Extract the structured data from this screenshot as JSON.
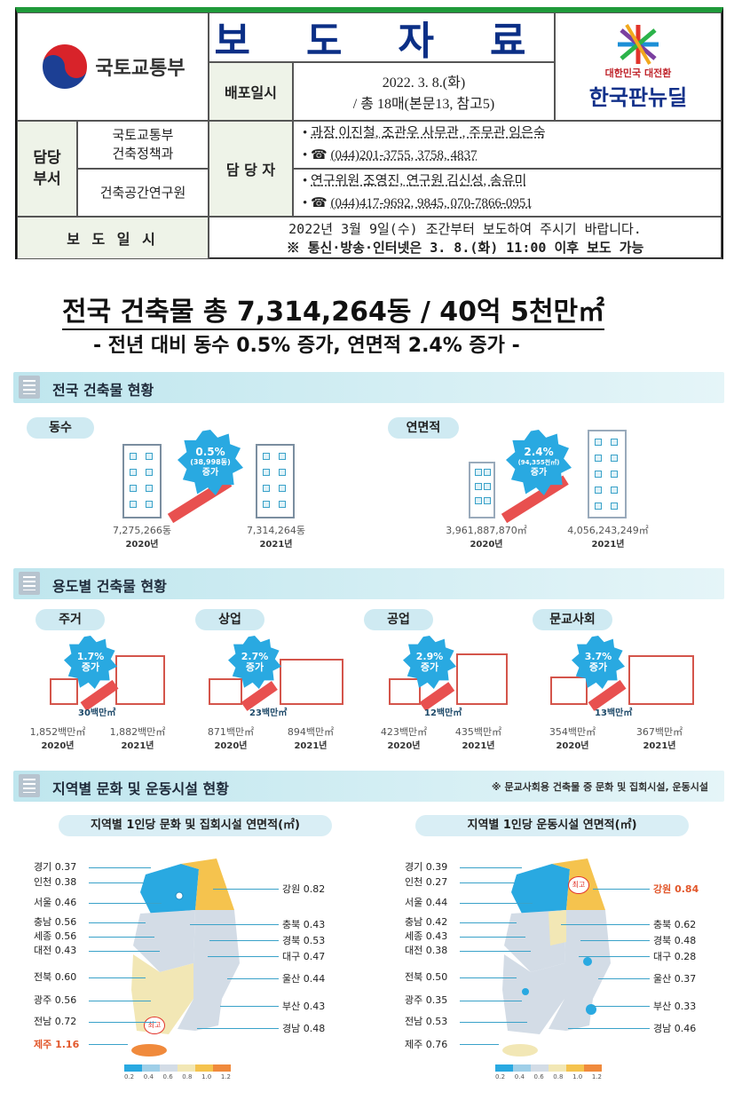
{
  "header": {
    "ministry": "국토교통부",
    "title": "보 도 자 료",
    "release_label": "배포일시",
    "release_date": "2022. 3. 8.(화)",
    "release_pages": "/ 총 18매(본문13, 참고5)",
    "logo_top": "대한민국 대전환",
    "logo_main": "한국판뉴딜",
    "dept_label": "담당\n부서",
    "dept1": "국토교통부\n건축정책과",
    "dept2": "건축공간연구원",
    "contact_label": "담 당 자",
    "contact1_people": "과장 이진철, 조관우 사무관 , 주무관 임은숙",
    "contact1_phone": "(044)201-3755, 3758, 4837",
    "contact2_people": "연구위원 조영진, 연구원 김신성, 송유미",
    "contact2_phone": "(044)417-9692, 9845, 070-7866-0951",
    "embargo_label": "보 도 일 시",
    "embargo_line1": "2022년 3월 9일(수) 조간부터 보도하여 주시기 바랍니다.",
    "embargo_line2": "※ 통신·방송·인터넷은 3. 8.(화) 11:00 이후 보도 가능"
  },
  "headline": "전국 건축물 총 7,314,264동 / 40억 5천만㎡",
  "subheadline": "- 전년 대비 동수 0.5% 증가, 연면적 2.4% 증가 -",
  "sec1": {
    "title": "전국 건축물 현황",
    "count": {
      "label": "동수",
      "badge_pct": "0.5%",
      "badge_detail": "(38,998동)",
      "badge_word": "증가",
      "v2020": "7,275,266동",
      "y2020": "2020년",
      "v2021": "7,314,264동",
      "y2021": "2021년"
    },
    "area": {
      "label": "연면적",
      "badge_pct": "2.4%",
      "badge_detail": "(94,355천㎡)",
      "badge_word": "증가",
      "v2020": "3,961,887,870㎡",
      "y2020": "2020년",
      "v2021": "4,056,243,249㎡",
      "y2021": "2021년"
    }
  },
  "sec2": {
    "title": "용도별 건축물 현황",
    "items": [
      {
        "label": "주거",
        "pct": "1.7%",
        "word": "증가",
        "delta": "30백만㎡",
        "v2020": "1,852백만㎡",
        "v2021": "1,882백만㎡",
        "y2020": "2020년",
        "y2021": "2021년"
      },
      {
        "label": "상업",
        "pct": "2.7%",
        "word": "증가",
        "delta": "23백만㎡",
        "v2020": "871백만㎡",
        "v2021": "894백만㎡",
        "y2020": "2020년",
        "y2021": "2021년"
      },
      {
        "label": "공업",
        "pct": "2.9%",
        "word": "증가",
        "delta": "12백만㎡",
        "v2020": "423백만㎡",
        "v2021": "435백만㎡",
        "y2020": "2020년",
        "y2021": "2021년"
      },
      {
        "label": "문교사회",
        "pct": "3.7%",
        "word": "증가",
        "delta": "13백만㎡",
        "v2020": "354백만㎡",
        "v2021": "367백만㎡",
        "y2020": "2020년",
        "y2021": "2021년"
      }
    ]
  },
  "sec3": {
    "title": "지역별 문화 및 운동시설 현황",
    "note": "※ 문교사회용 건축물 중 문화 및 집회시설, 운동시설",
    "map1": {
      "title": "지역별 1인당 문화 및 집회시설 연면적(㎡)",
      "left": [
        [
          "경기",
          "0.37"
        ],
        [
          "인천",
          "0.38"
        ],
        [
          "서울",
          "0.46"
        ],
        [
          "충남",
          "0.56"
        ],
        [
          "세종",
          "0.56"
        ],
        [
          "대전",
          "0.43"
        ],
        [
          "전북",
          "0.60"
        ],
        [
          "광주",
          "0.56"
        ],
        [
          "전남",
          "0.72"
        ]
      ],
      "right": [
        [
          "강원",
          "0.82"
        ],
        [
          "충북",
          "0.43"
        ],
        [
          "경북",
          "0.53"
        ],
        [
          "대구",
          "0.47"
        ],
        [
          "울산",
          "0.44"
        ],
        [
          "부산",
          "0.43"
        ],
        [
          "경남",
          "0.48"
        ]
      ],
      "jeju": [
        "제주",
        "1.16"
      ],
      "badge": "최고"
    },
    "map2": {
      "title": "지역별 1인당 운동시설 연면적(㎡)",
      "left": [
        [
          "경기",
          "0.39"
        ],
        [
          "인천",
          "0.27"
        ],
        [
          "서울",
          "0.44"
        ],
        [
          "충남",
          "0.42"
        ],
        [
          "세종",
          "0.43"
        ],
        [
          "대전",
          "0.38"
        ],
        [
          "전북",
          "0.50"
        ],
        [
          "광주",
          "0.35"
        ],
        [
          "전남",
          "0.53"
        ]
      ],
      "right": [
        [
          "강원",
          "0.84"
        ],
        [
          "충북",
          "0.62"
        ],
        [
          "경북",
          "0.48"
        ],
        [
          "대구",
          "0.28"
        ],
        [
          "울산",
          "0.37"
        ],
        [
          "부산",
          "0.33"
        ],
        [
          "경남",
          "0.46"
        ]
      ],
      "jeju": [
        "제주",
        "0.76"
      ],
      "badge": "최고"
    },
    "legend": [
      "0.2",
      "0.4",
      "0.6",
      "0.8",
      "1.0",
      "1.2"
    ],
    "legend_colors": [
      "#29a9e1",
      "#9fcfe8",
      "#d3dce6",
      "#f2e7b5",
      "#f5c34e",
      "#f08a3c"
    ]
  }
}
